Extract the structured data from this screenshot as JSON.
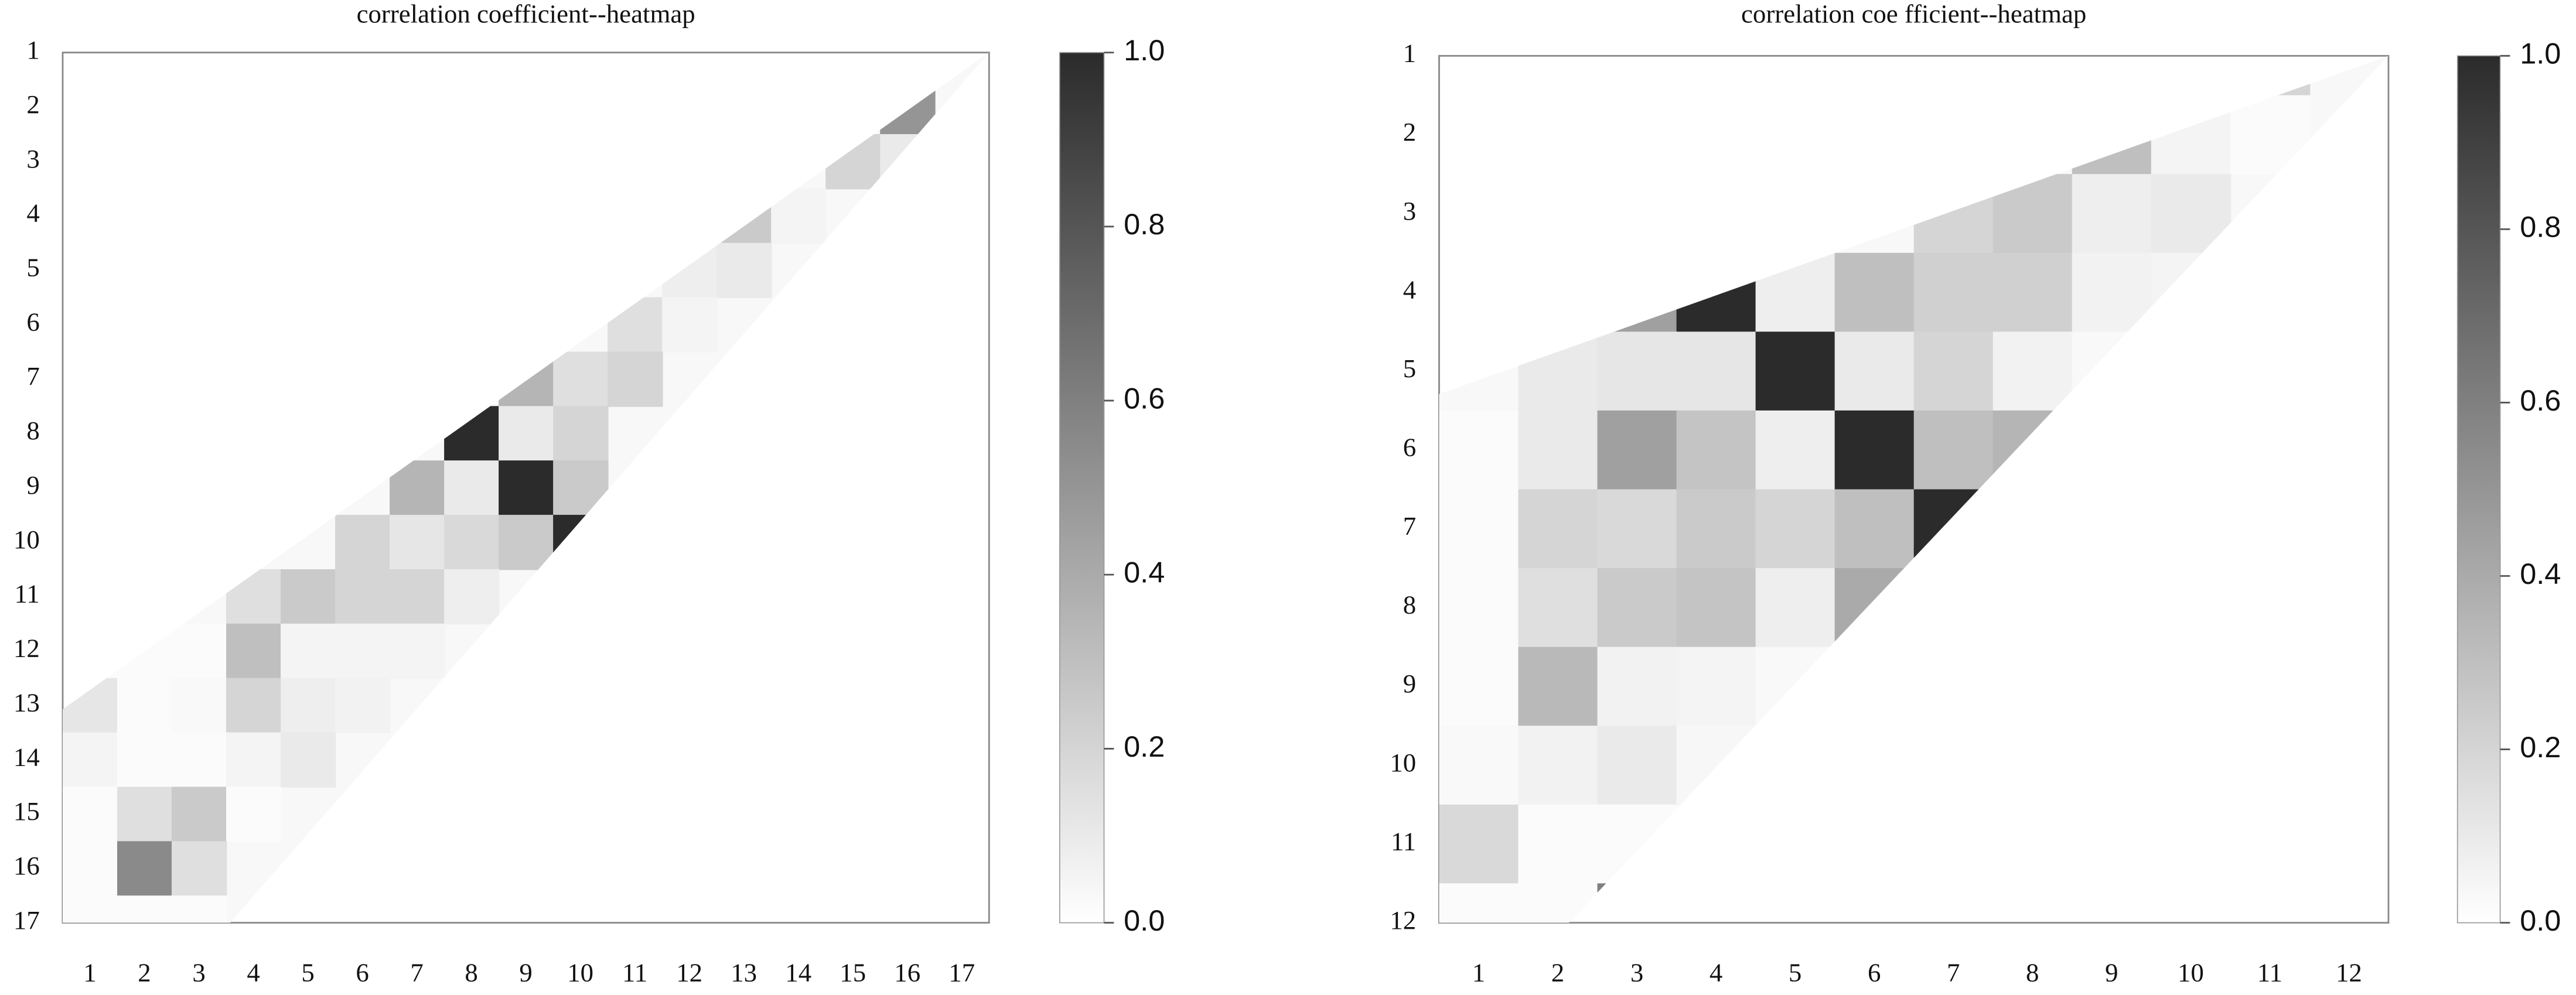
{
  "chart_data": [
    {
      "type": "heatmap",
      "title": "correlation coefficient--heatmap",
      "x": [
        "1",
        "2",
        "3",
        "4",
        "5",
        "6",
        "7",
        "8",
        "9",
        "10",
        "11",
        "12",
        "13",
        "14",
        "15",
        "16",
        "17"
      ],
      "y": [
        "1",
        "2",
        "3",
        "4",
        "5",
        "6",
        "7",
        "8",
        "9",
        "10",
        "11",
        "12",
        "13",
        "14",
        "15",
        "16",
        "17"
      ],
      "values": [
        [
          null,
          null,
          null,
          null,
          null,
          null,
          null,
          null,
          null,
          null,
          null,
          null,
          null,
          null,
          null,
          null,
          null
        ],
        [
          null,
          null,
          null,
          null,
          null,
          null,
          null,
          null,
          null,
          null,
          null,
          null,
          null,
          null,
          null,
          0.5,
          null
        ],
        [
          null,
          null,
          null,
          null,
          null,
          null,
          null,
          null,
          null,
          null,
          null,
          null,
          null,
          null,
          0.2,
          0.1,
          null
        ],
        [
          null,
          null,
          null,
          null,
          null,
          null,
          null,
          null,
          null,
          null,
          null,
          null,
          0.25,
          0.05,
          null,
          null,
          null
        ],
        [
          null,
          null,
          null,
          null,
          null,
          null,
          null,
          null,
          null,
          null,
          null,
          0.08,
          0.1,
          null,
          null,
          null,
          null
        ],
        [
          null,
          null,
          null,
          null,
          null,
          null,
          null,
          null,
          null,
          null,
          0.15,
          0.05,
          null,
          null,
          null,
          null,
          null
        ],
        [
          null,
          null,
          null,
          null,
          null,
          null,
          null,
          null,
          0.35,
          0.15,
          0.2,
          null,
          null,
          null,
          null,
          null,
          null
        ],
        [
          null,
          null,
          null,
          null,
          null,
          null,
          null,
          1.0,
          0.1,
          0.2,
          null,
          null,
          null,
          null,
          null,
          null,
          null
        ],
        [
          null,
          null,
          null,
          null,
          null,
          null,
          0.35,
          0.1,
          1.0,
          0.25,
          null,
          null,
          null,
          null,
          null,
          null,
          null
        ],
        [
          null,
          null,
          null,
          null,
          null,
          0.2,
          0.12,
          0.18,
          0.25,
          1.0,
          null,
          null,
          null,
          null,
          null,
          null,
          null
        ],
        [
          null,
          null,
          null,
          0.15,
          0.25,
          0.2,
          0.2,
          0.08,
          null,
          null,
          null,
          null,
          null,
          null,
          null,
          null,
          null
        ],
        [
          0.02,
          0.02,
          0.02,
          0.3,
          0.05,
          0.05,
          0.05,
          null,
          null,
          null,
          null,
          null,
          null,
          null,
          null,
          null,
          null
        ],
        [
          0.12,
          0.02,
          0.03,
          0.2,
          0.08,
          0.06,
          null,
          null,
          null,
          null,
          null,
          null,
          null,
          null,
          null,
          null,
          null
        ],
        [
          0.05,
          0.02,
          0.02,
          0.05,
          0.1,
          null,
          null,
          null,
          null,
          null,
          null,
          null,
          null,
          null,
          null,
          null,
          null
        ],
        [
          0.02,
          0.15,
          0.25,
          0.02,
          null,
          null,
          null,
          null,
          null,
          null,
          null,
          null,
          null,
          null,
          null,
          null,
          null
        ],
        [
          0.02,
          0.55,
          0.15,
          null,
          null,
          null,
          null,
          null,
          null,
          null,
          null,
          null,
          null,
          null,
          null,
          null,
          null
        ],
        [
          0.02,
          0.02,
          0.02,
          null,
          null,
          null,
          null,
          null,
          null,
          null,
          null,
          null,
          null,
          null,
          null,
          null,
          null
        ]
      ],
      "cmap": [
        "#ffffff",
        "#2b2b2b"
      ],
      "clim": [
        0,
        1
      ],
      "cticks": [
        {
          "value": 0,
          "label": "0.0"
        },
        0.2,
        0.4,
        0.6,
        0.8,
        {
          "value": 1,
          "label": "1.0"
        }
      ]
    },
    {
      "type": "heatmap",
      "title": "correlation coe  fficient--heatmap",
      "x": [
        "1",
        "2",
        "3",
        "4",
        "5",
        "6",
        "7",
        "8",
        "9",
        "10",
        "11",
        "12"
      ],
      "y": [
        "1",
        "2",
        "3",
        "4",
        "5",
        "6",
        "7",
        "8",
        "9",
        "10",
        "11",
        "12"
      ],
      "values": [
        [
          null,
          null,
          null,
          null,
          null,
          null,
          null,
          null,
          null,
          null,
          0.2,
          null
        ],
        [
          null,
          null,
          null,
          null,
          null,
          null,
          null,
          null,
          0.3,
          0.05,
          0.02,
          null
        ],
        [
          null,
          null,
          null,
          null,
          null,
          null,
          0.2,
          0.25,
          0.08,
          0.1,
          null,
          null
        ],
        [
          null,
          null,
          0.45,
          1.0,
          0.08,
          0.3,
          0.22,
          0.22,
          0.06,
          0.05,
          null,
          null
        ],
        [
          null,
          0.1,
          0.12,
          0.12,
          1.0,
          0.1,
          0.2,
          0.06,
          0.03,
          null,
          null,
          null
        ],
        [
          0.02,
          0.1,
          0.45,
          0.28,
          0.08,
          1.0,
          0.3,
          0.35,
          null,
          null,
          null,
          null
        ],
        [
          0.02,
          0.2,
          0.18,
          0.25,
          0.2,
          0.3,
          1.0,
          null,
          null,
          null,
          null,
          null
        ],
        [
          0.02,
          0.15,
          0.25,
          0.28,
          0.08,
          0.4,
          null,
          null,
          null,
          null,
          null,
          null
        ],
        [
          0.02,
          0.33,
          0.06,
          0.05,
          0.03,
          null,
          null,
          null,
          null,
          null,
          null,
          null
        ],
        [
          0.03,
          0.06,
          0.1,
          0.04,
          null,
          null,
          null,
          null,
          null,
          null,
          null,
          null
        ],
        [
          0.18,
          0.02,
          0.02,
          null,
          null,
          null,
          null,
          null,
          null,
          null,
          null,
          null
        ],
        [
          0.02,
          0.02,
          0.6,
          null,
          null,
          null,
          null,
          null,
          null,
          null,
          null,
          null
        ]
      ],
      "cmap": [
        "#ffffff",
        "#2b2b2b"
      ],
      "clim": [
        0,
        1
      ],
      "cticks": [
        {
          "value": 0,
          "label": "0.0"
        },
        0.2,
        0.4,
        0.6,
        0.8,
        {
          "value": 1,
          "label": "1.0"
        }
      ]
    }
  ]
}
